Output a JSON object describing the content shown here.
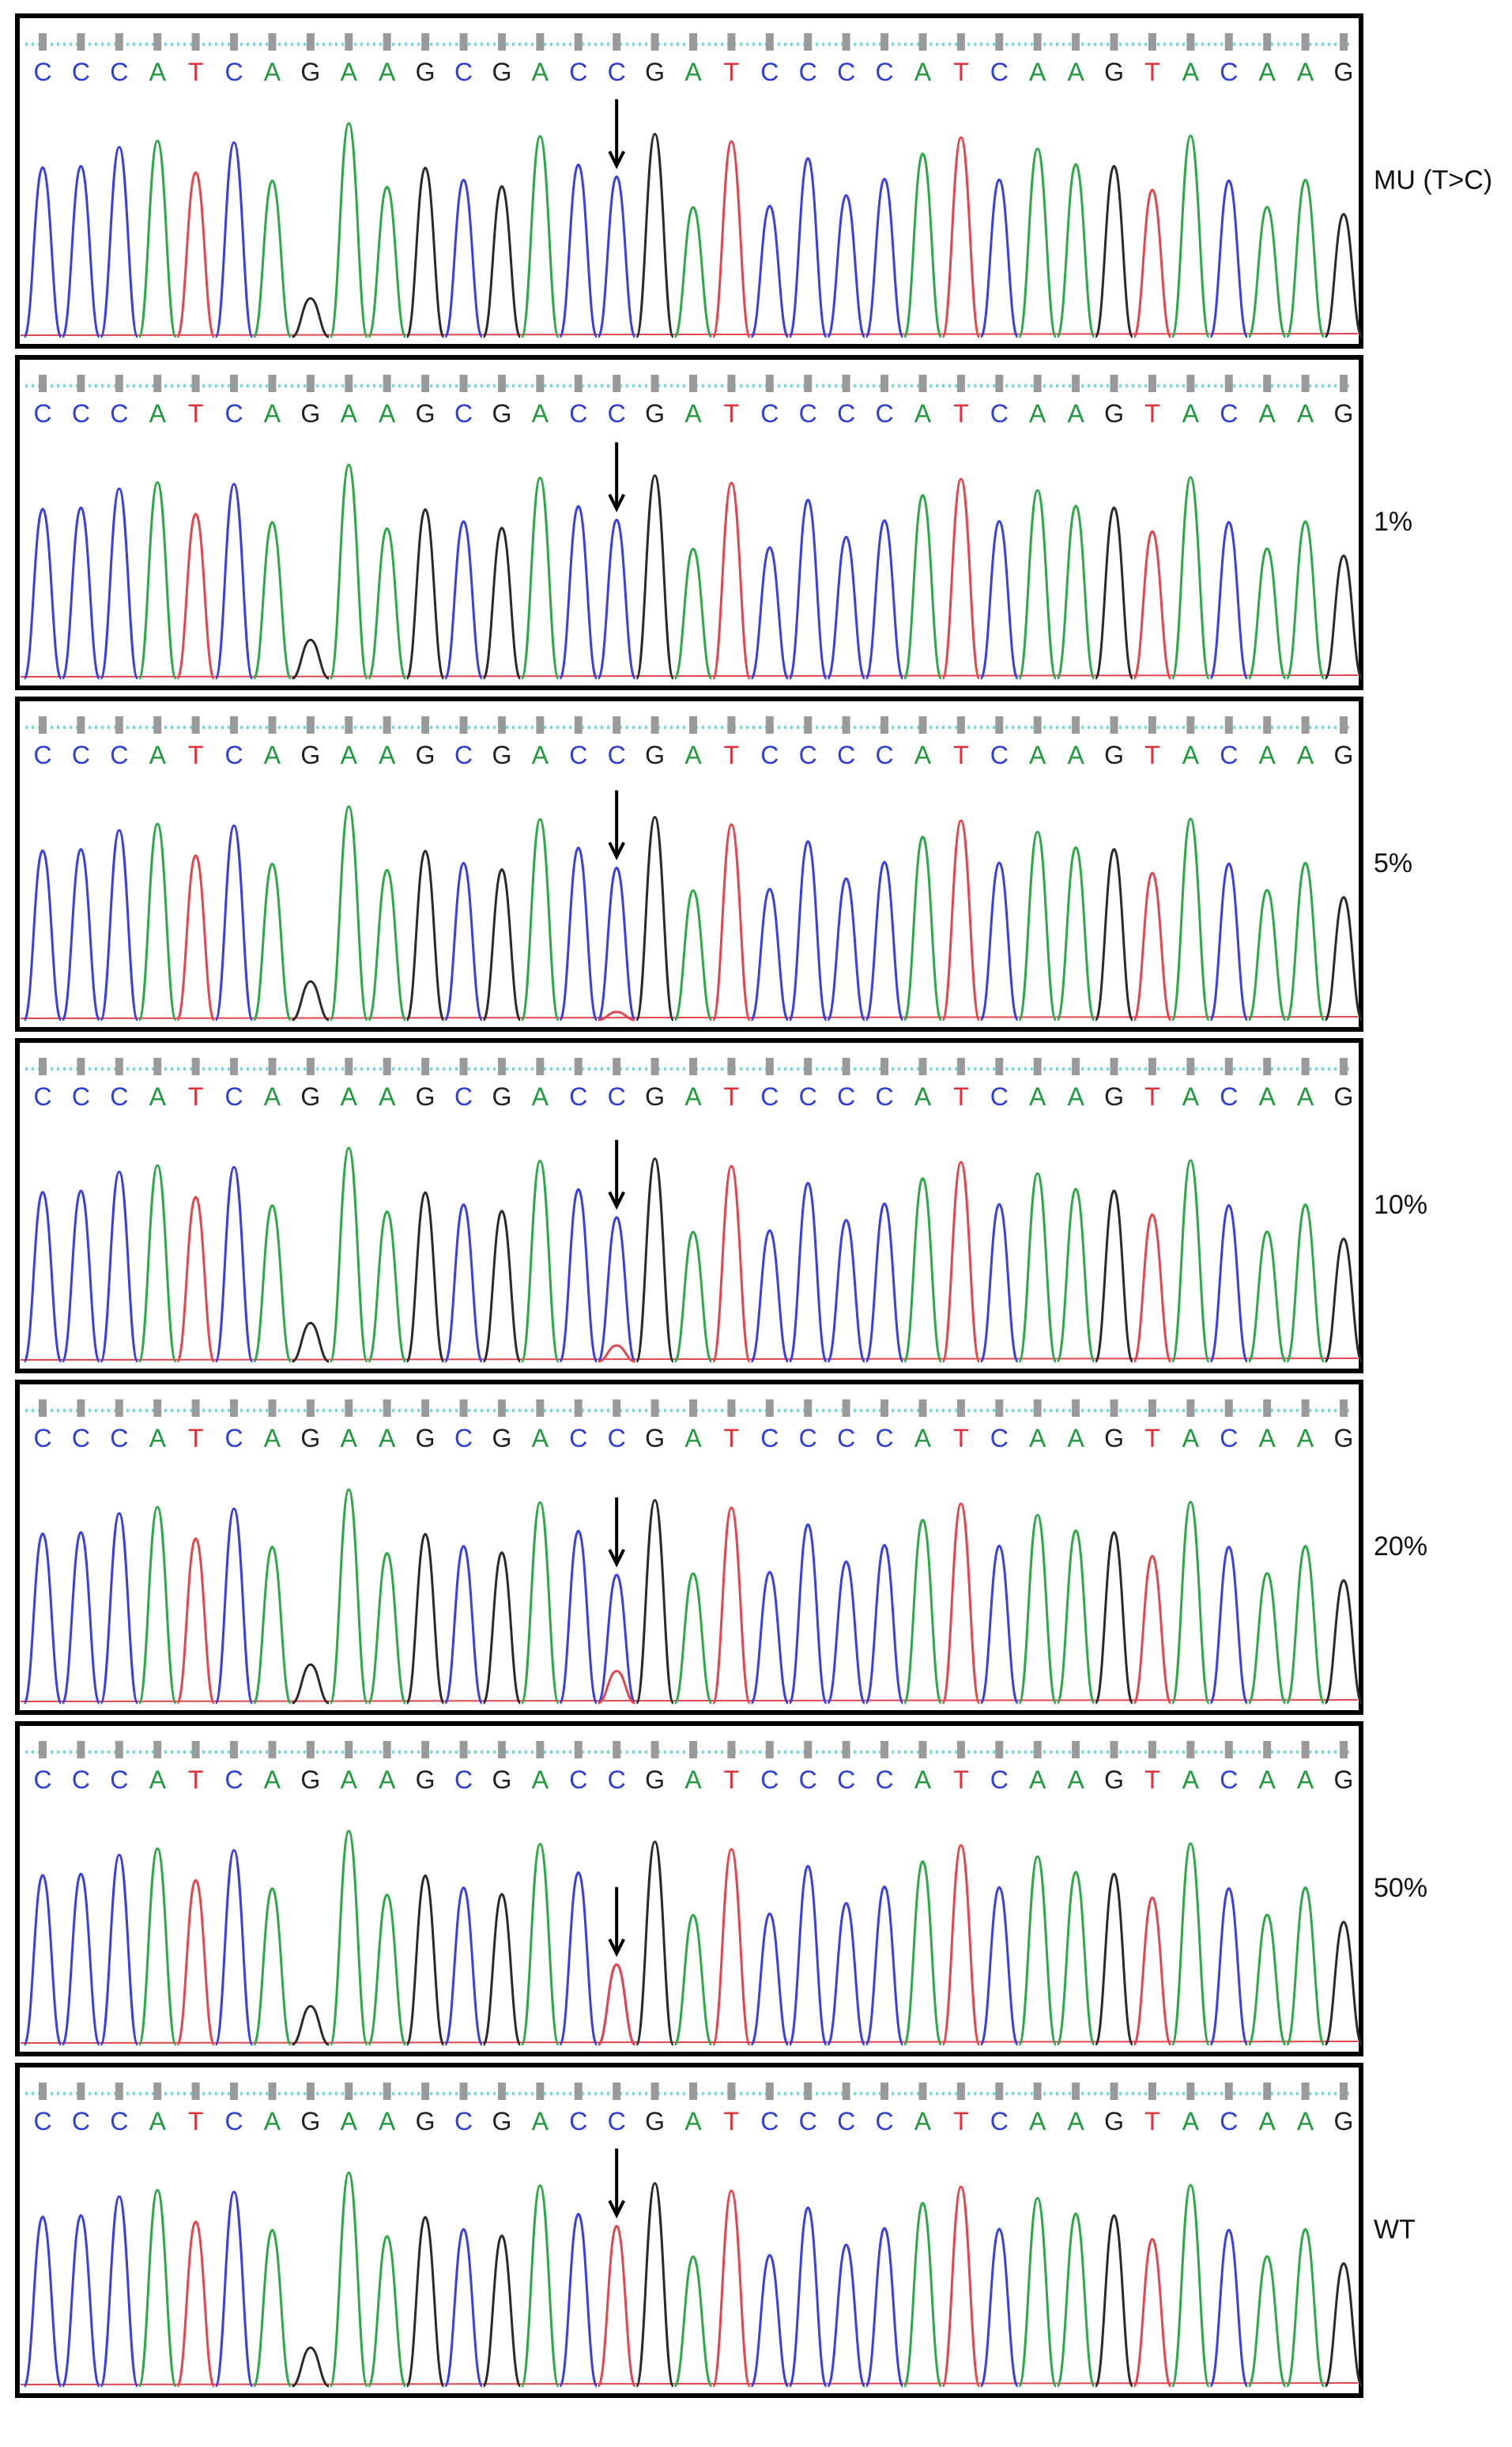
{
  "sequence": "CCCATCAGAAGCGACCGATCCCCATCAAGTACAAG",
  "base_colors": {
    "A": "#1f9a3c",
    "C": "#2e3fd6",
    "G": "#202020",
    "T": "#e0303a"
  },
  "peak_colors": {
    "A": "#2fa84a",
    "C": "#3a3fe0",
    "G": "#2a2a2a",
    "T": "#e2474f"
  },
  "dotted_line_color": "#7fd4e0",
  "panel_frame_color": "#000000",
  "arrow_icon": "down-arrow-icon",
  "panels": [
    {
      "label": "MU (T>C)",
      "variant_fraction": 1.0
    },
    {
      "label": "1%",
      "variant_fraction": 0.99
    },
    {
      "label": "5%",
      "variant_fraction": 0.95
    },
    {
      "label": "10%",
      "variant_fraction": 0.9
    },
    {
      "label": "20%",
      "variant_fraction": 0.8
    },
    {
      "label": "50%",
      "variant_fraction": 0.5
    },
    {
      "label": "WT",
      "variant_fraction": 0.0
    }
  ]
}
